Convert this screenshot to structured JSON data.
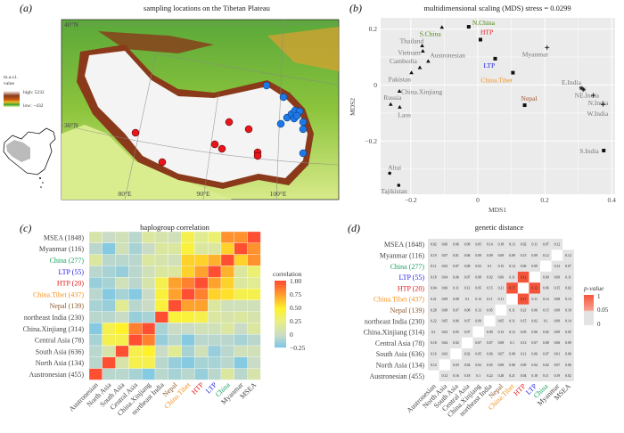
{
  "panels": {
    "a": {
      "label": "(a)",
      "title": "sampling locations on the Tibetan Plateau"
    },
    "b": {
      "label": "(b)",
      "title": "multidimensional scaling (MDS) stress = 0.0299"
    },
    "c": {
      "label": "(c)",
      "title": "haplogroup correlation"
    },
    "d": {
      "label": "(d)",
      "title": "genetic distance"
    }
  },
  "map": {
    "legend_title_1": "m.a.s.l.",
    "legend_title_2": "value",
    "legend_high": "high: 5232",
    "legend_low": "low: −432",
    "lat_labels": [
      "40°N",
      "30°N"
    ],
    "lon_labels": [
      "80°E",
      "90°E",
      "100°E"
    ],
    "site_colors": {
      "red": "#e8151b",
      "blue": "#1f78e8"
    }
  },
  "chart_data": [
    {
      "type": "scatter",
      "title": "multidimensional scaling (MDS) stress = 0.0299",
      "xlabel": "MDS1",
      "ylabel": "MDS2",
      "xlim": [
        -0.29,
        0.41
      ],
      "ylim": [
        -0.39,
        0.24
      ],
      "xticks": [
        "−0.2",
        "0",
        "0.2",
        "0.4"
      ],
      "xtick_values": [
        -0.2,
        0,
        0.2,
        0.4
      ],
      "yticks": [
        "0.2",
        "0",
        "−0.2"
      ],
      "ytick_values": [
        0.2,
        0,
        -0.2
      ],
      "grid": true,
      "points": [
        {
          "name": "S.China",
          "x": -0.107,
          "y": 0.206,
          "shape": "triangle",
          "color": "#4f8a10"
        },
        {
          "name": "N.China",
          "x": -0.027,
          "y": 0.208,
          "shape": "square",
          "color": "#4f8a10"
        },
        {
          "name": "HTP",
          "x": 0.008,
          "y": 0.162,
          "shape": "square",
          "color": "#e41a1c"
        },
        {
          "name": "Thailand",
          "x": -0.166,
          "y": 0.14,
          "shape": "triangle",
          "color": "#777777"
        },
        {
          "name": "Vietnam",
          "x": -0.164,
          "y": 0.121,
          "shape": "triangle",
          "color": "#777777"
        },
        {
          "name": "Austronesian",
          "x": -0.148,
          "y": 0.085,
          "shape": "triangle",
          "color": "#777777"
        },
        {
          "name": "Cambodia",
          "x": -0.173,
          "y": 0.062,
          "shape": "triangle",
          "color": "#777777"
        },
        {
          "name": "LTP",
          "x": 0.052,
          "y": 0.094,
          "shape": "square",
          "color": "#2323e0"
        },
        {
          "name": "Pakistan",
          "x": -0.198,
          "y": 0.044,
          "shape": "triangle",
          "color": "#777777"
        },
        {
          "name": "China.Tibet",
          "x": 0.105,
          "y": 0.044,
          "shape": "square",
          "color": "#f39422"
        },
        {
          "name": "Myanmar",
          "x": 0.207,
          "y": 0.134,
          "shape": "plus",
          "color": "#777777"
        },
        {
          "name": "China.Xinjiang",
          "x": -0.234,
          "y": -0.022,
          "shape": "triangle",
          "color": "#777777"
        },
        {
          "name": "Russia",
          "x": -0.26,
          "y": -0.069,
          "shape": "triangle",
          "color": "#777777"
        },
        {
          "name": "Laos",
          "x": -0.233,
          "y": -0.079,
          "shape": "triangle",
          "color": "#777777"
        },
        {
          "name": "Nepal",
          "x": 0.14,
          "y": -0.072,
          "shape": "square",
          "color": "#a0522d"
        },
        {
          "name": "E.India",
          "x": 0.309,
          "y": -0.011,
          "shape": "star",
          "color": "#777777"
        },
        {
          "name": "NE.India",
          "x": 0.316,
          "y": -0.016,
          "shape": "star",
          "color": "#777777"
        },
        {
          "name": "N.India",
          "x": 0.345,
          "y": -0.037,
          "shape": "plus",
          "color": "#777777"
        },
        {
          "name": "W.India",
          "x": 0.374,
          "y": -0.069,
          "shape": "plus",
          "color": "#777777"
        },
        {
          "name": "S.India",
          "x": 0.376,
          "y": -0.234,
          "shape": "square",
          "color": "#777777"
        },
        {
          "name": "Altai",
          "x": -0.263,
          "y": -0.315,
          "shape": "circle",
          "color": "#777777"
        },
        {
          "name": "Tajikistan",
          "x": -0.236,
          "y": -0.358,
          "shape": "circle",
          "color": "#777777"
        }
      ]
    },
    {
      "type": "heatmap",
      "title": "haplogroup correlation",
      "legend_title": "correlation",
      "legend_ticks": [
        "1.00",
        "0.75",
        "0.50",
        "0.25",
        "0",
        "−0.25"
      ],
      "legend_values": [
        1,
        0.75,
        0.5,
        0.25,
        0,
        -0.25
      ],
      "scale_colors": [
        "#74c5e8",
        "#cbdcc6",
        "#e6ef84",
        "#fff12a",
        "#ffa12d",
        "#ff4f33"
      ],
      "rows": [
        "MSEA (1848)",
        "Myanmar (116)",
        "China (277)",
        "LTP (55)",
        "HTP (20)",
        "China.Tibet (437)",
        "Nepal (139)",
        "northeast India (230)",
        "China.Xinjiang (314)",
        "Central Asia (78)",
        "South Asia (636)",
        "North Asia (134)",
        "Austronesian (455)"
      ],
      "row_colors": [
        "#444444",
        "#444444",
        "#1aa260",
        "#2323e0",
        "#e41a1c",
        "#f39422",
        "#8b5a2b",
        "#444444",
        "#444444",
        "#444444",
        "#444444",
        "#444444",
        "#444444"
      ],
      "columns": [
        "Austronesian",
        "North Asia",
        "South Asia",
        "Central Asia",
        "China.Xinjiang",
        "northeast India",
        "Nepal",
        "China.Tibet",
        "HTP",
        "LTP",
        "China",
        "Myanmar",
        "MSEA"
      ],
      "column_colors": [
        "#444444",
        "#444444",
        "#444444",
        "#444444",
        "#444444",
        "#444444",
        "#8b5a2b",
        "#f39422",
        "#e41a1c",
        "#2323e0",
        "#1aa260",
        "#444444",
        "#444444"
      ],
      "values": [
        [
          0.1,
          0,
          0.05,
          -0.05,
          0.15,
          0.1,
          0.05,
          0.4,
          0.2,
          0.3,
          0.8,
          0.8,
          1
        ],
        [
          -0.05,
          -0.2,
          0.05,
          -0.1,
          0,
          0.15,
          0.15,
          0.45,
          0.15,
          0.15,
          0.6,
          1,
          0.8
        ],
        [
          0.15,
          -0.05,
          -0.05,
          -0.05,
          0.15,
          0.1,
          0.05,
          0.6,
          0.6,
          0.7,
          1,
          0.6,
          0.8
        ],
        [
          -0.05,
          -0.1,
          -0.15,
          -0.05,
          0.05,
          0.15,
          0.15,
          0.6,
          0.75,
          1,
          0.7,
          0.15,
          0.3
        ],
        [
          -0.15,
          -0.1,
          0.05,
          -0.05,
          0.1,
          0.4,
          0.75,
          0.85,
          1,
          0.75,
          0.6,
          0.15,
          0.2
        ],
        [
          -0.05,
          -0.2,
          -0.1,
          -0.2,
          0,
          0.45,
          0.75,
          1,
          0.85,
          0.6,
          0.55,
          0.4,
          0.4
        ],
        [
          -0.1,
          -0.15,
          0.2,
          -0.05,
          0,
          0.45,
          1,
          0.75,
          0.75,
          0.15,
          0.05,
          0.05,
          0.05
        ],
        [
          -0.05,
          -0.05,
          0,
          -0.15,
          -0.1,
          1,
          0.45,
          0.45,
          0.4,
          0.15,
          0.1,
          0.15,
          0.1
        ],
        [
          -0.2,
          0.4,
          0.5,
          0.85,
          1,
          -0.1,
          0,
          0,
          0.05,
          0.05,
          0.15,
          0,
          0.15
        ],
        [
          -0.1,
          0.4,
          0.4,
          1,
          0.85,
          -0.15,
          -0.05,
          -0.2,
          -0.05,
          -0.05,
          -0.05,
          -0.1,
          -0.05
        ],
        [
          -0.05,
          0.1,
          1,
          0.4,
          0.5,
          0,
          0.2,
          -0.1,
          0.05,
          -0.15,
          -0.05,
          0.05,
          0.05
        ],
        [
          -0.05,
          1,
          0.1,
          0.4,
          0.4,
          -0.05,
          -0.15,
          -0.2,
          -0.1,
          -0.1,
          -0.05,
          -0.2,
          0
        ],
        [
          1,
          -0.05,
          -0.05,
          -0.1,
          -0.2,
          -0.05,
          -0.1,
          -0.05,
          -0.15,
          -0.05,
          0.15,
          -0.05,
          0.1
        ]
      ]
    },
    {
      "type": "heatmap",
      "title": "genetic distance",
      "legend_title": "p-value",
      "legend_ticks": [
        "1",
        "0.05",
        "0"
      ],
      "significant_color": "#f4553a",
      "cell_color": "#e3e3e3",
      "rows": [
        "MSEA (1848)",
        "Myanmar (116)",
        "China (277)",
        "LTP (55)",
        "HTP (20)",
        "China.Tibet (437)",
        "Nepal (139)",
        "northeast India (230)",
        "China.Xinjiang (314)",
        "Central Asia (78)",
        "South Asia (636)",
        "North Asia (134)",
        "Austronesian (455)"
      ],
      "columns": [
        "Austronesian",
        "North Asia",
        "South Asia",
        "Central Asia",
        "China.Xinjiang",
        "northeast India",
        "Nepal",
        "China.Tibet",
        "HTP",
        "LTP",
        "China",
        "Myanmar",
        "MSEA"
      ],
      "values": [
        [
          0.02,
          0.06,
          0.06,
          0.09,
          0.05,
          0.14,
          0.18,
          0.13,
          0.02,
          0.11,
          0.07,
          0.12,
          null
        ],
        [
          0.19,
          0.07,
          0.01,
          0.06,
          0.09,
          0.09,
          0.09,
          0.08,
          0.15,
          0.09,
          0.12,
          null,
          0.12
        ],
        [
          0.11,
          0.02,
          0.07,
          0.08,
          0.02,
          0.1,
          0.15,
          0.14,
          0.06,
          0.09,
          null,
          0.12,
          0.07
        ],
        [
          0.18,
          0.04,
          0.06,
          0.07,
          0.08,
          0.02,
          0.06,
          0.11,
          0.12,
          null,
          0.09,
          0.09,
          0.11
        ],
        [
          0.04,
          0.06,
          0.11,
          0.13,
          0.05,
          0.15,
          0.21,
          0.17,
          null,
          0.12,
          0.06,
          0.15,
          0.02
        ],
        [
          0.21,
          0.09,
          0.08,
          0.1,
          0.12,
          0.11,
          0.11,
          null,
          0.17,
          0.11,
          0.14,
          0.08,
          0.13
        ],
        [
          0.28,
          0.08,
          0.07,
          0.08,
          0.13,
          0.05,
          null,
          0.11,
          0.21,
          0.06,
          0.15,
          0.09,
          0.18
        ],
        [
          0.22,
          0.05,
          0.06,
          0.07,
          0.09,
          null,
          0.05,
          0.11,
          0.15,
          0.02,
          0.1,
          0.09,
          0.14
        ],
        [
          0.1,
          0.02,
          0.05,
          0.07,
          null,
          0.09,
          0.13,
          0.12,
          0.05,
          0.06,
          0.02,
          0.09,
          0.05
        ],
        [
          0.18,
          0.04,
          0.02,
          null,
          0.07,
          0.07,
          0.08,
          0.1,
          0.13,
          0.07,
          0.08,
          0.06,
          0.09
        ],
        [
          0.16,
          0.03,
          null,
          0.02,
          0.05,
          0.06,
          0.07,
          0.08,
          0.11,
          0.06,
          0.07,
          0.01,
          0.06
        ],
        [
          0.12,
          null,
          0.03,
          0.04,
          0.02,
          0.05,
          0.08,
          0.08,
          0.09,
          0.04,
          0.02,
          0.07,
          0.06
        ],
        [
          null,
          0.12,
          0.16,
          0.18,
          0.1,
          0.22,
          0.28,
          0.21,
          0.04,
          0.18,
          0.11,
          0.19,
          0.02
        ]
      ],
      "significant_pairs": [
        [
          "LTP",
          "HTP"
        ],
        [
          "HTP",
          "China.Tibet"
        ],
        [
          "HTP",
          "LTP"
        ],
        [
          "China.Tibet",
          "HTP"
        ]
      ]
    }
  ]
}
